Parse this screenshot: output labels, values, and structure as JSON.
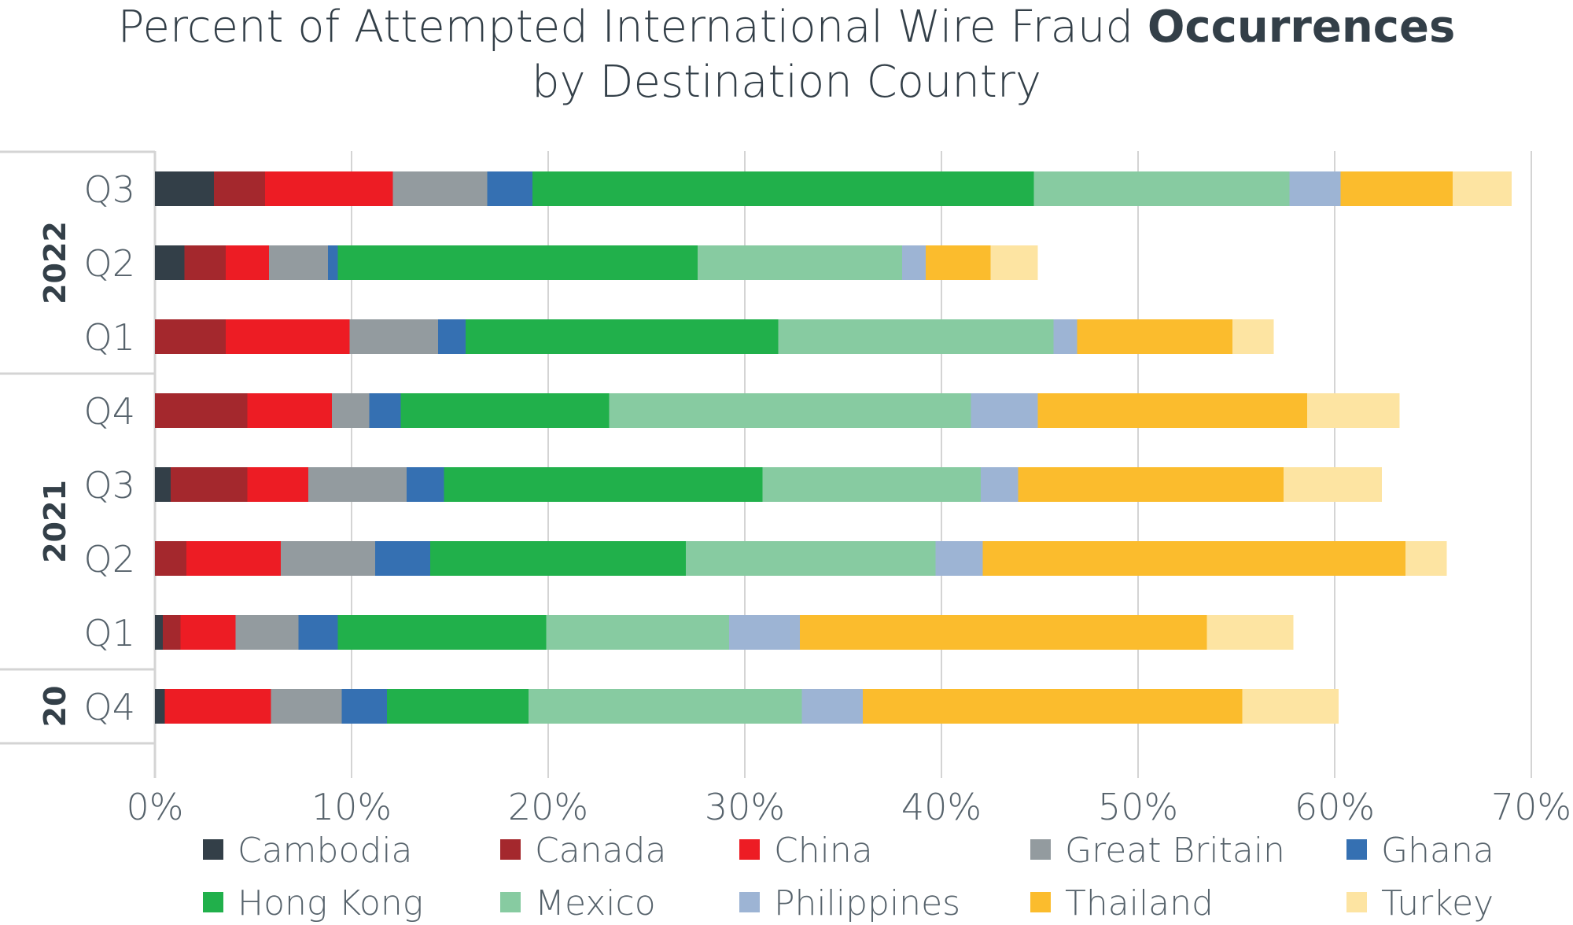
{
  "title": {
    "part1": "Percent of Attempted International Wire Fraud ",
    "part_bold": "Occurrences",
    "line2": "by Destination Country"
  },
  "chart_data": {
    "type": "bar",
    "orientation": "horizontal",
    "stacked": true,
    "title": "Percent of Attempted International Wire Fraud Occurrences by Destination Country",
    "xlim": [
      0,
      70
    ],
    "x_ticks": [
      "0%",
      "10%",
      "20%",
      "30%",
      "40%",
      "50%",
      "60%",
      "70%"
    ],
    "grid": true,
    "legend_position": "bottom",
    "groups": [
      {
        "label": "2022",
        "quarters": [
          "Q3",
          "Q2",
          "Q1"
        ]
      },
      {
        "label": "2021",
        "quarters": [
          "Q4",
          "Q3",
          "Q2",
          "Q1"
        ]
      },
      {
        "label": "20",
        "quarters": [
          "Q4"
        ]
      }
    ],
    "categories": [
      "Q3",
      "Q2",
      "Q1",
      "Q4",
      "Q3",
      "Q2",
      "Q1",
      "Q4"
    ],
    "series": [
      {
        "name": "Cambodia",
        "color": "#333f48",
        "values": [
          3.0,
          1.5,
          0.0,
          0.0,
          0.8,
          0.0,
          0.4,
          0.5
        ]
      },
      {
        "name": "Canada",
        "color": "#a4282d",
        "values": [
          2.6,
          2.1,
          3.6,
          4.7,
          3.9,
          1.6,
          0.9,
          0.0
        ]
      },
      {
        "name": "China",
        "color": "#ed1c24",
        "values": [
          6.5,
          2.2,
          6.3,
          4.3,
          3.1,
          4.8,
          2.8,
          5.4
        ]
      },
      {
        "name": "Great Britain",
        "color": "#939b9f",
        "values": [
          4.8,
          3.0,
          4.5,
          1.9,
          5.0,
          4.8,
          3.2,
          3.6
        ]
      },
      {
        "name": "Ghana",
        "color": "#3570b2",
        "values": [
          2.3,
          0.5,
          1.4,
          1.6,
          1.9,
          2.8,
          2.0,
          2.3
        ]
      },
      {
        "name": "Hong Kong",
        "color": "#21b04b",
        "values": [
          25.5,
          18.3,
          15.9,
          10.6,
          16.2,
          13.0,
          10.6,
          7.2
        ]
      },
      {
        "name": "Mexico",
        "color": "#87cba1",
        "values": [
          13.0,
          10.4,
          14.0,
          18.4,
          11.1,
          12.7,
          9.3,
          13.9
        ]
      },
      {
        "name": "Philippines",
        "color": "#9db4d4",
        "values": [
          2.6,
          1.2,
          1.2,
          3.4,
          1.9,
          2.4,
          3.6,
          3.1
        ]
      },
      {
        "name": "Thailand",
        "color": "#fbbc2d",
        "values": [
          5.7,
          3.3,
          7.9,
          13.7,
          13.5,
          21.5,
          20.7,
          19.3
        ]
      },
      {
        "name": "Turkey",
        "color": "#fde4a2",
        "values": [
          3.0,
          2.4,
          2.1,
          4.7,
          5.0,
          2.1,
          4.4,
          4.9
        ]
      }
    ]
  }
}
